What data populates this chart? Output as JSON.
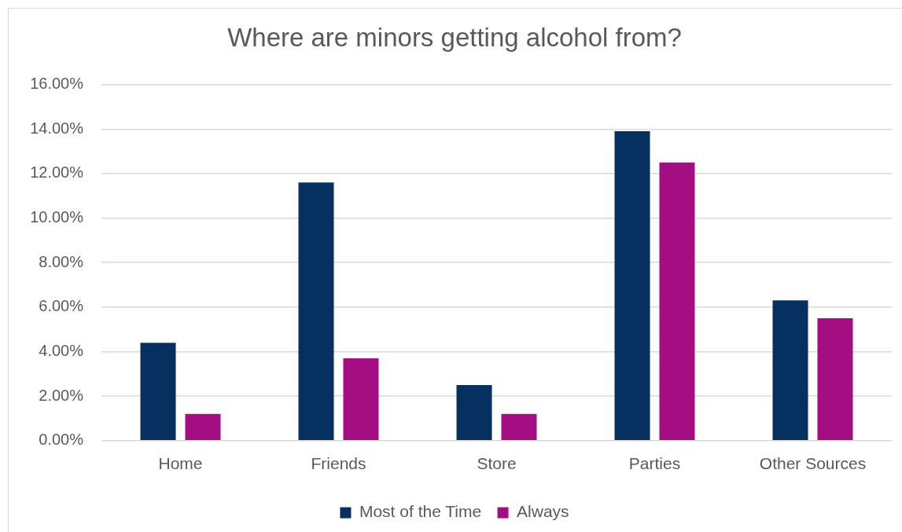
{
  "chart_data": {
    "type": "bar",
    "title": "Where are minors getting alcohol from?",
    "categories": [
      "Home",
      "Friends",
      "Store",
      "Parties",
      "Other Sources"
    ],
    "series": [
      {
        "name": "Most of the Time",
        "color": "#06305f",
        "values": [
          4.4,
          11.6,
          2.5,
          13.9,
          6.3
        ]
      },
      {
        "name": "Always",
        "color": "#a50e82",
        "values": [
          1.2,
          3.7,
          1.2,
          12.5,
          5.5
        ]
      }
    ],
    "ylim": [
      0,
      16
    ],
    "yticks": [
      {
        "value": 0,
        "label": "0.00%"
      },
      {
        "value": 2,
        "label": "2.00%"
      },
      {
        "value": 4,
        "label": "4.00%"
      },
      {
        "value": 6,
        "label": "6.00%"
      },
      {
        "value": 8,
        "label": "8.00%"
      },
      {
        "value": 10,
        "label": "10.00%"
      },
      {
        "value": 12,
        "label": "12.00%"
      },
      {
        "value": 14,
        "label": "14.00%"
      },
      {
        "value": 16,
        "label": "16.00%"
      }
    ],
    "grid": "y",
    "legend": "bottom"
  }
}
